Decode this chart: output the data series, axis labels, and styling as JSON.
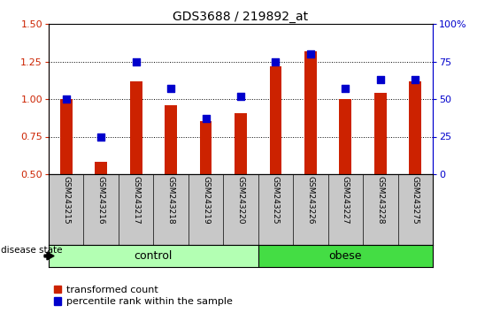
{
  "title": "GDS3688 / 219892_at",
  "samples": [
    "GSM243215",
    "GSM243216",
    "GSM243217",
    "GSM243218",
    "GSM243219",
    "GSM243220",
    "GSM243225",
    "GSM243226",
    "GSM243227",
    "GSM243228",
    "GSM243275"
  ],
  "transformed_count": [
    1.0,
    0.585,
    1.115,
    0.96,
    0.855,
    0.905,
    1.22,
    1.32,
    1.0,
    1.04,
    1.115
  ],
  "percentile_rank": [
    50,
    25,
    75,
    57,
    37,
    52,
    75,
    80,
    57,
    63,
    63
  ],
  "groups": [
    {
      "label": "control",
      "start": 0,
      "end": 6,
      "color": "#b3ffb3"
    },
    {
      "label": "obese",
      "start": 6,
      "end": 11,
      "color": "#44dd44"
    }
  ],
  "ylim_left": [
    0.5,
    1.5
  ],
  "ylim_right": [
    0,
    100
  ],
  "yticks_left": [
    0.5,
    0.75,
    1.0,
    1.25,
    1.5
  ],
  "yticks_right": [
    0,
    25,
    50,
    75,
    100
  ],
  "ytick_labels_right": [
    "0",
    "25",
    "50",
    "75",
    "100%"
  ],
  "bar_color": "#cc2200",
  "dot_color": "#0000cc",
  "bar_width": 0.35,
  "dot_size": 30,
  "xlabel_area_color": "#c8c8c8",
  "title_fontsize": 10,
  "tick_fontsize": 8,
  "legend_fontsize": 8,
  "disease_state_label": "disease state",
  "legend_items": [
    "transformed count",
    "percentile rank within the sample"
  ]
}
